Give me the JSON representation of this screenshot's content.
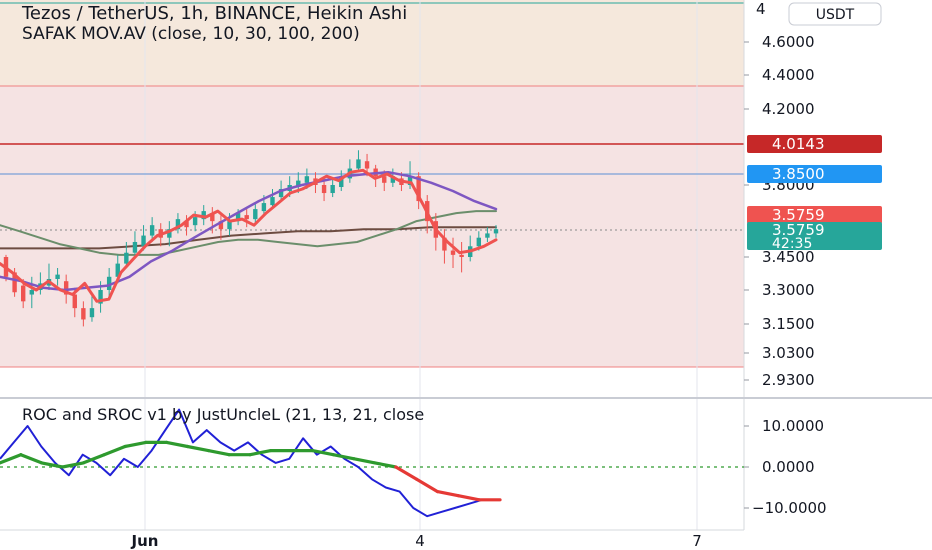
{
  "header": {
    "title": "Tezos / TetherUS, 1h, BINANCE, Heikin Ashi",
    "indicator": "SAFAK  MOV.AV (close, 10, 30, 100, 200)",
    "currency_button": "USDT"
  },
  "oscillator": {
    "title": "ROC and SROC v1 by JustUncleL (21, 13, 21, close"
  },
  "colors": {
    "background": "#ffffff",
    "zone_upper": "#f5e8dc",
    "zone_lower": "#f5e3e3",
    "zone_border": "#f08080",
    "resistance_line": "#c62828",
    "blue_line": "#5c8fd6",
    "ma_fast": "#ef5350",
    "ma_mid": "#7e57c2",
    "ma_slow": "#6b8e6b",
    "ma_long": "#6d4c41",
    "candle_up": "#26a69a",
    "candle_down": "#ef5350",
    "roc": "#2121d6",
    "sroc_up": "#2e9a2e",
    "sroc_down": "#e53935",
    "zero_line": "#2e9a2e"
  },
  "chart_data": [
    {
      "type": "candlestick",
      "ylim": [
        2.88,
        4.72
      ],
      "y_ticks": [
        "4.6000",
        "4.4000",
        "4.2000",
        "3.8000",
        "3.4500",
        "3.3000",
        "3.1500",
        "3.0300",
        "2.9300"
      ],
      "y_ticks_values": [
        4.6,
        4.4,
        4.2,
        3.8,
        3.45,
        3.3,
        3.15,
        3.03,
        2.93
      ],
      "x_ticks": [
        "Jun",
        "4",
        "7"
      ],
      "zone_upper": [
        4.34,
        4.72
      ],
      "zone_lower": [
        2.96,
        4.34
      ],
      "horizontal_lines": [
        {
          "value": 4.0143,
          "label": "4.0143",
          "color": "#c62828"
        },
        {
          "value": 3.85,
          "label": "3.8500",
          "color": "#2196f3"
        }
      ],
      "price_tags": [
        {
          "value": 3.5759,
          "label": "3.5759",
          "color": "#ef5350"
        },
        {
          "value": 3.5759,
          "label": "3.5759",
          "sub": "42:35",
          "color": "#26a69a"
        }
      ],
      "ma_fast": [
        3.42,
        3.38,
        3.33,
        3.3,
        3.34,
        3.3,
        3.28,
        3.33,
        3.25,
        3.26,
        3.38,
        3.44,
        3.5,
        3.55,
        3.57,
        3.6,
        3.65,
        3.64,
        3.67,
        3.62,
        3.63,
        3.6,
        3.66,
        3.71,
        3.76,
        3.78,
        3.81,
        3.84,
        3.82,
        3.86,
        3.87,
        3.83,
        3.85,
        3.82,
        3.81,
        3.7,
        3.58,
        3.52,
        3.47,
        3.48,
        3.5,
        3.53
      ],
      "ma_mid": [
        3.36,
        3.34,
        3.31,
        3.3,
        3.31,
        3.32,
        3.36,
        3.43,
        3.48,
        3.54,
        3.6,
        3.66,
        3.72,
        3.77,
        3.8,
        3.82,
        3.84,
        3.85,
        3.86,
        3.84,
        3.81,
        3.77,
        3.72,
        3.68
      ],
      "ma_slow": [
        3.6,
        3.57,
        3.54,
        3.51,
        3.49,
        3.47,
        3.46,
        3.46,
        3.46,
        3.48,
        3.5,
        3.52,
        3.53,
        3.53,
        3.52,
        3.51,
        3.5,
        3.51,
        3.52,
        3.55,
        3.58,
        3.62,
        3.64,
        3.66,
        3.67,
        3.67
      ],
      "ma_long": [
        3.49,
        3.49,
        3.49,
        3.49,
        3.5,
        3.51,
        3.53,
        3.55,
        3.56,
        3.57,
        3.57,
        3.58,
        3.58,
        3.59,
        3.59,
        3.59
      ],
      "candles": [
        [
          3.45,
          3.36,
          3.46,
          3.34
        ],
        [
          3.38,
          3.29,
          3.4,
          3.27
        ],
        [
          3.32,
          3.25,
          3.35,
          3.22
        ],
        [
          3.28,
          3.3,
          3.36,
          3.22
        ],
        [
          3.3,
          3.33,
          3.38,
          3.28
        ],
        [
          3.32,
          3.35,
          3.42,
          3.3
        ],
        [
          3.35,
          3.37,
          3.4,
          3.32
        ],
        [
          3.34,
          3.28,
          3.37,
          3.24
        ],
        [
          3.28,
          3.22,
          3.31,
          3.18
        ],
        [
          3.22,
          3.17,
          3.25,
          3.14
        ],
        [
          3.18,
          3.22,
          3.28,
          3.16
        ],
        [
          3.24,
          3.3,
          3.34,
          3.2
        ],
        [
          3.3,
          3.36,
          3.4,
          3.27
        ],
        [
          3.36,
          3.42,
          3.46,
          3.33
        ],
        [
          3.42,
          3.47,
          3.52,
          3.4
        ],
        [
          3.47,
          3.52,
          3.57,
          3.45
        ],
        [
          3.5,
          3.55,
          3.6,
          3.48
        ],
        [
          3.55,
          3.6,
          3.64,
          3.52
        ],
        [
          3.58,
          3.54,
          3.61,
          3.5
        ],
        [
          3.54,
          3.58,
          3.62,
          3.5
        ],
        [
          3.58,
          3.63,
          3.66,
          3.56
        ],
        [
          3.62,
          3.59,
          3.65,
          3.55
        ],
        [
          3.6,
          3.64,
          3.67,
          3.57
        ],
        [
          3.63,
          3.67,
          3.7,
          3.6
        ],
        [
          3.66,
          3.62,
          3.69,
          3.56
        ],
        [
          3.62,
          3.58,
          3.65,
          3.53
        ],
        [
          3.58,
          3.62,
          3.66,
          3.55
        ],
        [
          3.62,
          3.66,
          3.68,
          3.6
        ],
        [
          3.65,
          3.63,
          3.68,
          3.59
        ],
        [
          3.63,
          3.68,
          3.71,
          3.61
        ],
        [
          3.67,
          3.71,
          3.75,
          3.65
        ],
        [
          3.7,
          3.74,
          3.78,
          3.68
        ],
        [
          3.74,
          3.78,
          3.82,
          3.72
        ],
        [
          3.77,
          3.8,
          3.84,
          3.74
        ],
        [
          3.79,
          3.82,
          3.86,
          3.76
        ],
        [
          3.81,
          3.84,
          3.88,
          3.78
        ],
        [
          3.83,
          3.8,
          3.86,
          3.76
        ],
        [
          3.8,
          3.76,
          3.83,
          3.72
        ],
        [
          3.76,
          3.8,
          3.83,
          3.74
        ],
        [
          3.79,
          3.84,
          3.87,
          3.77
        ],
        [
          3.83,
          3.88,
          3.93,
          3.81
        ],
        [
          3.88,
          3.93,
          3.98,
          3.86
        ],
        [
          3.92,
          3.88,
          3.96,
          3.84
        ],
        [
          3.88,
          3.84,
          3.9,
          3.79
        ],
        [
          3.84,
          3.81,
          3.87,
          3.77
        ],
        [
          3.81,
          3.84,
          3.88,
          3.79
        ],
        [
          3.83,
          3.8,
          3.86,
          3.77
        ],
        [
          3.8,
          3.84,
          3.92,
          3.78
        ],
        [
          3.84,
          3.72,
          3.86,
          3.68
        ],
        [
          3.72,
          3.62,
          3.75,
          3.56
        ],
        [
          3.62,
          3.54,
          3.66,
          3.48
        ],
        [
          3.54,
          3.48,
          3.58,
          3.42
        ],
        [
          3.48,
          3.46,
          3.54,
          3.4
        ],
        [
          3.46,
          3.45,
          3.52,
          3.38
        ],
        [
          3.45,
          3.5,
          3.55,
          3.43
        ],
        [
          3.5,
          3.54,
          3.57,
          3.48
        ],
        [
          3.54,
          3.56,
          3.59,
          3.52
        ],
        [
          3.56,
          3.58,
          3.6,
          3.54
        ]
      ]
    },
    {
      "type": "line",
      "ylim": [
        -14,
        15
      ],
      "y_ticks": [
        "10.0000",
        "0.0000",
        "−10.0000"
      ],
      "y_ticks_values": [
        10,
        0,
        -10
      ],
      "series": [
        {
          "role": "roc",
          "values": [
            2,
            6,
            10,
            5,
            1,
            -2,
            3,
            1,
            -2,
            2,
            0,
            4,
            9,
            14,
            6,
            9,
            6,
            4,
            6,
            3,
            1,
            2,
            7,
            3,
            5,
            2,
            0,
            -3,
            -5,
            -6,
            -10,
            -12,
            -11,
            -10,
            -9,
            -8,
            -8
          ]
        },
        {
          "role": "sroc",
          "values": [
            1,
            3,
            1,
            0,
            1,
            3,
            5,
            6,
            6,
            5,
            4,
            3,
            3,
            4,
            4,
            4,
            3,
            2,
            1,
            0,
            -3,
            -6,
            -7,
            -8,
            -8
          ]
        }
      ]
    }
  ]
}
